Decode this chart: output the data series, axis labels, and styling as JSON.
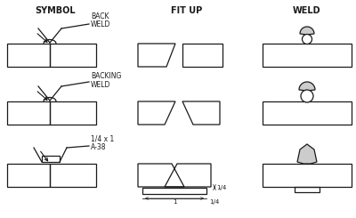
{
  "title_symbol": "SYMBOL",
  "title_fitup": "FIT UP",
  "title_weld": "WELD",
  "bg_color": "#ffffff",
  "line_color": "#1a1a1a",
  "fill_light": "#cccccc",
  "dim_1": "1/4",
  "dim_2": "1"
}
